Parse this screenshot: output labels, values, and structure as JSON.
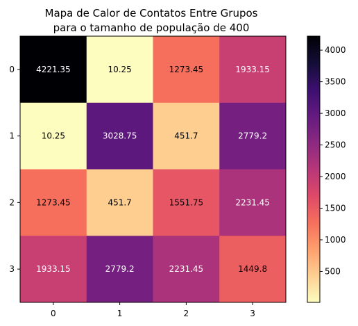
{
  "chart_data": {
    "type": "heatmap",
    "title_lines": [
      "Mapa de Calor de Contatos Entre Grupos",
      "para o tamanho de população de 400"
    ],
    "x_categories": [
      "0",
      "1",
      "2",
      "3"
    ],
    "y_categories": [
      "0",
      "1",
      "2",
      "3"
    ],
    "values": [
      [
        4221.35,
        10.25,
        1273.45,
        1933.15
      ],
      [
        10.25,
        3028.75,
        451.7,
        2779.2
      ],
      [
        1273.45,
        451.7,
        1551.75,
        2231.45
      ],
      [
        1933.15,
        2779.2,
        2231.45,
        1449.8
      ]
    ],
    "cell_labels": [
      [
        "4221.35",
        "10.25",
        "1273.45",
        "1933.15"
      ],
      [
        "10.25",
        "3028.75",
        "451.7",
        "2779.2"
      ],
      [
        "1273.45",
        "451.7",
        "1551.75",
        "2231.45"
      ],
      [
        "1933.15",
        "2779.2",
        "2231.45",
        "1449.8"
      ]
    ],
    "colormap": "magma_r",
    "colorbar": {
      "range": [
        10.25,
        4221.35
      ],
      "ticks": [
        500,
        1000,
        1500,
        2000,
        2500,
        3000,
        3500,
        4000
      ],
      "tick_labels": [
        "500",
        "1000",
        "1500",
        "2000",
        "2500",
        "3000",
        "3500",
        "4000"
      ]
    },
    "colors": {
      "stops": [
        "#fcfdbf",
        "#fecf92",
        "#fe9f6d",
        "#f66f5c",
        "#de4968",
        "#b73779",
        "#8c2981",
        "#641a80",
        "#3b0f70",
        "#140e36",
        "#000004"
      ],
      "text_light": "#ffffff",
      "text_dark": "#000000"
    }
  }
}
